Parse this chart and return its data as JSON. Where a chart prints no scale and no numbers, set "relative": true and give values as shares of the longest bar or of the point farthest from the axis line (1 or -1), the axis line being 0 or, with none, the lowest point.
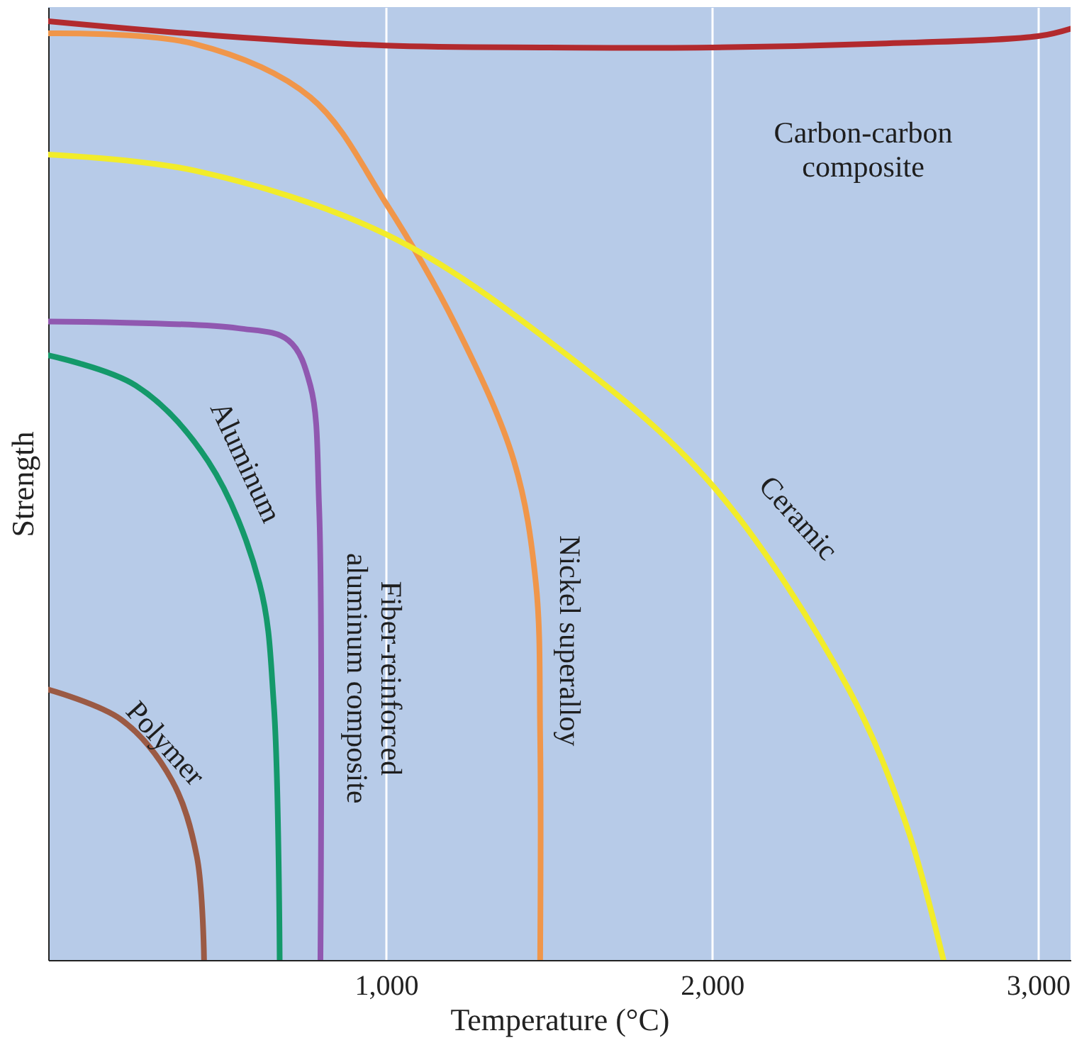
{
  "chart_data": {
    "type": "line",
    "relative": true,
    "xlabel": "Temperature (°C)",
    "ylabel": "Strength",
    "xlim": [
      -36,
      3100
    ],
    "xticks": [
      {
        "value": 1000,
        "label": "1,000"
      },
      {
        "value": 2000,
        "label": "2,000"
      },
      {
        "value": 3000,
        "label": "3,000"
      }
    ],
    "grid": "x",
    "legend": false,
    "marker": "none",
    "line_style": "solid",
    "series": [
      {
        "name": "Carbon-carbon composite",
        "color": "#b22a2e",
        "x": [
          -36,
          500,
          1000,
          1500,
          2000,
          2500,
          3000,
          3100
        ],
        "values": [
          1.0,
          0.984,
          0.974,
          0.972,
          0.972,
          0.976,
          0.984,
          0.992
        ]
      },
      {
        "name": "Nickel superalloy",
        "color": "#f0964a",
        "x": [
          -36,
          410,
          768,
          1000,
          1214,
          1393,
          1460,
          1473,
          1473
        ],
        "values": [
          0.987,
          0.976,
          0.919,
          0.806,
          0.676,
          0.531,
          0.401,
          0.239,
          0
        ]
      },
      {
        "name": "Ceramic",
        "color": "#f2ec2a",
        "x": [
          -36,
          411,
          1000,
          1527,
          2000,
          2420,
          2598,
          2710
        ],
        "values": [
          0.858,
          0.841,
          0.773,
          0.652,
          0.506,
          0.288,
          0.142,
          0
        ]
      },
      {
        "name": "Fiber-reinforced aluminum composite",
        "color": "#9058b0",
        "x": [
          -36,
          545,
          701,
          768,
          795,
          799
        ],
        "values": [
          0.68,
          0.673,
          0.66,
          0.612,
          0.482,
          0
        ]
      },
      {
        "name": "Aluminum",
        "color": "#14996a",
        "x": [
          -36,
          232,
          455,
          612,
          656,
          674
        ],
        "values": [
          0.644,
          0.612,
          0.531,
          0.401,
          0.272,
          0
        ]
      },
      {
        "name": "Polymer",
        "color": "#9b5a44",
        "x": [
          -36,
          188,
          344,
          420,
          442
        ],
        "values": [
          0.288,
          0.256,
          0.191,
          0.11,
          0
        ]
      }
    ]
  }
}
